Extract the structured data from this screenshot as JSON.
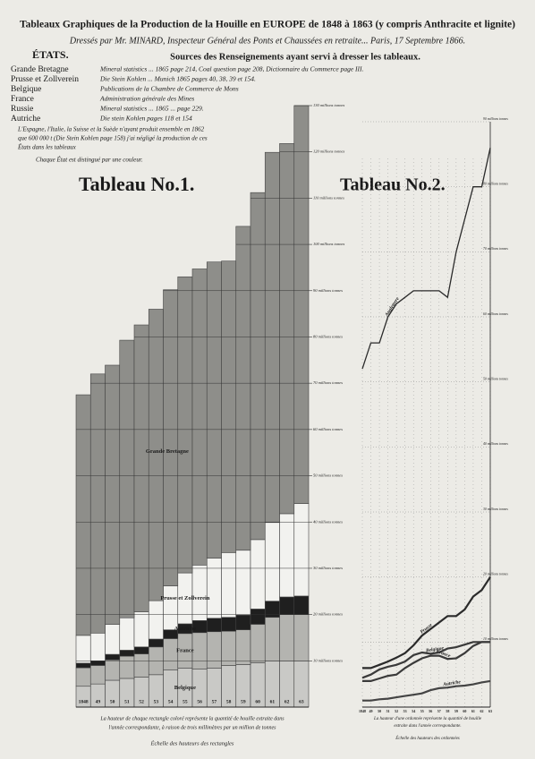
{
  "header": {
    "title": "Tableaux Graphiques de la Production de la Houille en EUROPE de 1848 à 1863 (y compris Anthracite et lignite)",
    "subtitle": "Dressés par Mr. MINARD, Inspecteur Général des Ponts et Chaussées en retraite... Paris, 17 Septembre 1866.",
    "states_heading": "ÉTATS.",
    "sources_heading": "Sources des Renseignements ayant servi à dresser les tableaux.",
    "sources": [
      [
        "Grande Bretagne",
        "Mineral statistics ... 1865 page 214, Coal question page 208, Dictionnaire du Commerce page III."
      ],
      [
        "Prusse et Zollverein",
        "Die Stein Kohlen ... Munich 1865 pages 40, 38, 39 et 154."
      ],
      [
        "Belgique",
        "Publications de la Chambre de Commerce de Mons"
      ],
      [
        "France",
        "Administration générale des Mines"
      ],
      [
        "Russie",
        "Mineral statistics ... 1865 ... page 229."
      ],
      [
        "Autriche",
        "Die stein Kohlen pages 118 et 154"
      ]
    ],
    "notes": [
      "L'Espagne, l'Italie, la Suisse et la Suède n'ayant produit ensemble en 1862",
      "que 600 000 t (Die Stein Kohlen page 158) j'ai négligé la production de ces",
      "États dans les tableaux",
      "Chaque État est distingué par une couleur."
    ]
  },
  "chart_data": [
    {
      "type": "bar",
      "stacked": true,
      "title": "Tableau No.1.",
      "categories": [
        "1848",
        "49",
        "50",
        "51",
        "52",
        "53",
        "54",
        "55",
        "56",
        "57",
        "58",
        "59",
        "60",
        "61",
        "62",
        "63"
      ],
      "series": [
        {
          "name": "Belgique",
          "color": "#c9c9c6",
          "values": [
            4.5,
            5,
            5.8,
            6.2,
            6.5,
            7,
            8,
            8.4,
            8.2,
            8.4,
            9,
            9.2,
            9.6,
            10,
            10,
            10
          ]
        },
        {
          "name": "France",
          "color": "#b4b4b0",
          "values": [
            4,
            4,
            4.4,
            4.8,
            5,
            6,
            6.8,
            7.5,
            7.9,
            7.9,
            7.4,
            7.5,
            8.3,
            9.4,
            10,
            10
          ]
        },
        {
          "name": "Autriche",
          "color": "#1f1f1f",
          "values": [
            1,
            1,
            1.2,
            1.3,
            1.5,
            1.7,
            1.9,
            2.1,
            2.6,
            2.9,
            3,
            3.2,
            3.3,
            3.5,
            3.8,
            4
          ]
        },
        {
          "name": "Prusse et Zollverein",
          "color": "#f2f2ef",
          "values": [
            6,
            6,
            6.5,
            7,
            7.6,
            8.3,
            9.5,
            11,
            12,
            13,
            14,
            14,
            15,
            17,
            18,
            20
          ]
        },
        {
          "name": "Grande Bretagne",
          "color": "#8e8e8a",
          "values": [
            52,
            56,
            56,
            60,
            62,
            63,
            64,
            64,
            64,
            64,
            63,
            70,
            75,
            80,
            80,
            86
          ]
        }
      ],
      "ylim": [
        0,
        130
      ],
      "yticks": [
        {
          "value": 10,
          "label": "10 millions tonnes"
        },
        {
          "value": 20,
          "label": "20 millions tonnes"
        },
        {
          "value": 30,
          "label": "30 millions tonnes"
        },
        {
          "value": 40,
          "label": "40 millions tonnes"
        },
        {
          "value": 50,
          "label": "50 millions tonnes"
        },
        {
          "value": 60,
          "label": "60 millions tonnes"
        },
        {
          "value": 70,
          "label": "70 millions tonnes"
        },
        {
          "value": 80,
          "label": "80 millions tonnes"
        },
        {
          "value": 90,
          "label": "90 millions tonnes"
        },
        {
          "value": 100,
          "label": "100 millions tonnes"
        },
        {
          "value": 110,
          "label": "110 millions tonnes"
        },
        {
          "value": 120,
          "label": "120 millions tonnes"
        },
        {
          "value": 130,
          "label": "130 millions tonnes"
        }
      ],
      "grid": true,
      "notes": [
        "La hauteur de chaque rectangle coloré représente la quantité de houille extraite dans",
        "l'année correspondante, à raison de trois millimètres par un million de tonnes",
        "Échelle des hauteurs des rectangles"
      ]
    },
    {
      "type": "line",
      "title": "Tableau No.2.",
      "categories": [
        "1848",
        "49",
        "50",
        "51",
        "52",
        "53",
        "54",
        "55",
        "56",
        "57",
        "58",
        "59",
        "60",
        "61",
        "62",
        "63"
      ],
      "series": [
        {
          "name": "Angleterre",
          "color": "#2a2a2a",
          "values": [
            52,
            56,
            56,
            60,
            62,
            63,
            64,
            64,
            64,
            64,
            63,
            70,
            75,
            80,
            80,
            86
          ]
        },
        {
          "name": "Prusse",
          "color": "#2a2a2a",
          "values": [
            6,
            6,
            6.5,
            7,
            7.6,
            8.3,
            9.5,
            11,
            12,
            13,
            14,
            14,
            15,
            17,
            18,
            20
          ]
        },
        {
          "name": "Belgique",
          "color": "#3a3a3a",
          "values": [
            4.5,
            5,
            5.8,
            6.2,
            6.5,
            7,
            8,
            8.4,
            8.2,
            8.4,
            9,
            9.2,
            9.6,
            10,
            10,
            10
          ]
        },
        {
          "name": "France",
          "color": "#3a3a3a",
          "values": [
            4,
            4,
            4.4,
            4.8,
            5,
            6,
            6.8,
            7.5,
            7.9,
            7.9,
            7.4,
            7.5,
            8.3,
            9.4,
            10,
            10
          ]
        },
        {
          "name": "Autriche",
          "color": "#444444",
          "values": [
            1,
            1,
            1.2,
            1.3,
            1.5,
            1.7,
            1.9,
            2.1,
            2.6,
            2.9,
            3,
            3.2,
            3.3,
            3.5,
            3.8,
            4
          ]
        }
      ],
      "ylim": [
        0,
        90
      ],
      "yticks": [
        {
          "value": 10,
          "label": "10 millions tonnes"
        },
        {
          "value": 20,
          "label": "20 millions tonnes"
        },
        {
          "value": 30,
          "label": "30 millions tonnes"
        },
        {
          "value": 40,
          "label": "40 millions tonnes"
        },
        {
          "value": 50,
          "label": "50 millions tonnes"
        },
        {
          "value": 60,
          "label": "60 millions tonnes"
        },
        {
          "value": 70,
          "label": "70 millions tonnes"
        },
        {
          "value": 80,
          "label": "80 millions tonnes"
        },
        {
          "value": 90,
          "label": "90 millions tonnes"
        }
      ],
      "grid": true,
      "notes": [
        "La hauteur d'une ordonnée représente la quantité de houille",
        "extraite dans l'année correspondante.",
        "Échelle des hauteurs des ordonnées"
      ]
    }
  ]
}
